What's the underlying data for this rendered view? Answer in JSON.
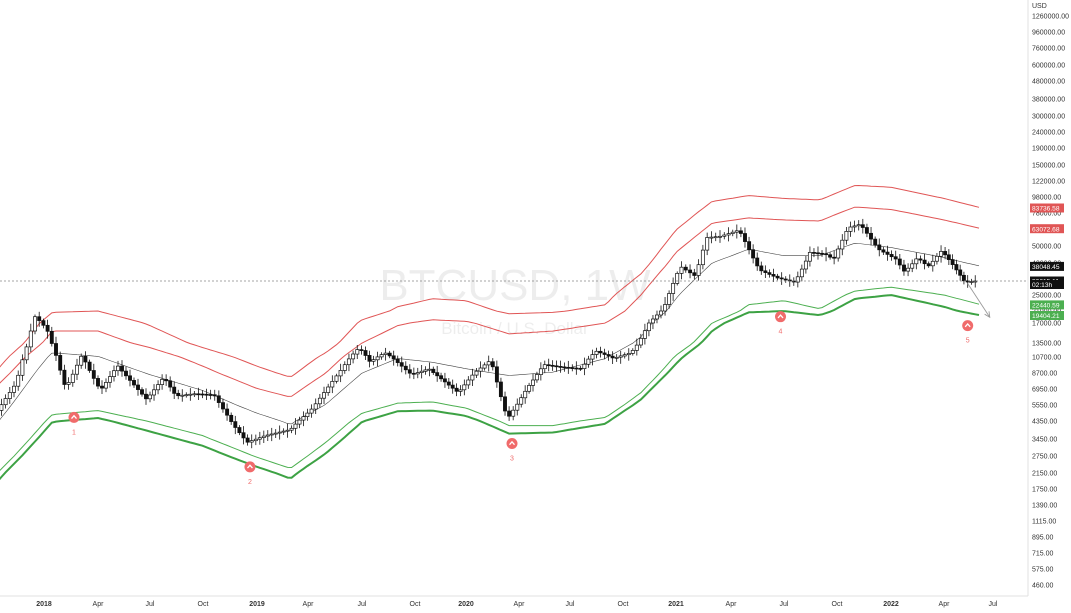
{
  "chart_data": {
    "type": "candlestick",
    "watermark": {
      "symbol": "BTCUSD, 1W",
      "description": "Bitcoin / U.S. Dollar"
    },
    "y_axis": {
      "unit_label": "USD",
      "scale": "log",
      "ticks": [
        {
          "label": "1260000.00",
          "value": 1260000
        },
        {
          "label": "960000.00",
          "value": 960000
        },
        {
          "label": "760000.00",
          "value": 760000
        },
        {
          "label": "600000.00",
          "value": 600000
        },
        {
          "label": "480000.00",
          "value": 480000
        },
        {
          "label": "380000.00",
          "value": 380000
        },
        {
          "label": "300000.00",
          "value": 300000
        },
        {
          "label": "240000.00",
          "value": 240000
        },
        {
          "label": "190000.00",
          "value": 190000
        },
        {
          "label": "150000.00",
          "value": 150000
        },
        {
          "label": "122000.00",
          "value": 122000
        },
        {
          "label": "98000.00",
          "value": 98000
        },
        {
          "label": "78000.00",
          "value": 78000
        },
        {
          "label": "62000.00",
          "value": 62000
        },
        {
          "label": "50000.00",
          "value": 50000
        },
        {
          "label": "40000.00",
          "value": 40000
        },
        {
          "label": "31500.00",
          "value": 31500
        },
        {
          "label": "25000.00",
          "value": 25000
        },
        {
          "label": "21000.00",
          "value": 21000
        },
        {
          "label": "17000.00",
          "value": 17000
        },
        {
          "label": "13500.00",
          "value": 13500
        },
        {
          "label": "10700.00",
          "value": 10700
        },
        {
          "label": "8700.00",
          "value": 8700
        },
        {
          "label": "6950.00",
          "value": 6950
        },
        {
          "label": "5550.00",
          "value": 5550
        },
        {
          "label": "4350.00",
          "value": 4350
        },
        {
          "label": "3450.00",
          "value": 3450
        },
        {
          "label": "2750.00",
          "value": 2750
        },
        {
          "label": "2150.00",
          "value": 2150
        },
        {
          "label": "1750.00",
          "value": 1750
        },
        {
          "label": "1390.00",
          "value": 1390
        },
        {
          "label": "1115.00",
          "value": 1115
        },
        {
          "label": "895.00",
          "value": 895
        },
        {
          "label": "715.00",
          "value": 715
        },
        {
          "label": "575.00",
          "value": 575
        },
        {
          "label": "460.00",
          "value": 460
        }
      ]
    },
    "x_axis": {
      "ticks": [
        {
          "label": "2018",
          "date": "2018-01-01",
          "bold": true
        },
        {
          "label": "Apr",
          "date": "2018-04-01",
          "bold": false
        },
        {
          "label": "Jul",
          "date": "2018-07-01",
          "bold": false
        },
        {
          "label": "Oct",
          "date": "2018-10-01",
          "bold": false
        },
        {
          "label": "2019",
          "date": "2019-01-01",
          "bold": true
        },
        {
          "label": "Apr",
          "date": "2019-04-01",
          "bold": false
        },
        {
          "label": "Jul",
          "date": "2019-07-01",
          "bold": false
        },
        {
          "label": "Oct",
          "date": "2019-10-01",
          "bold": false
        },
        {
          "label": "2020",
          "date": "2020-01-01",
          "bold": true
        },
        {
          "label": "Apr",
          "date": "2020-04-01",
          "bold": false
        },
        {
          "label": "Jul",
          "date": "2020-07-01",
          "bold": false
        },
        {
          "label": "Oct",
          "date": "2020-10-01",
          "bold": false
        },
        {
          "label": "2021",
          "date": "2021-01-01",
          "bold": true
        },
        {
          "label": "Apr",
          "date": "2021-04-01",
          "bold": false
        },
        {
          "label": "Jul",
          "date": "2021-07-01",
          "bold": false
        },
        {
          "label": "Oct",
          "date": "2021-10-01",
          "bold": false
        },
        {
          "label": "2022",
          "date": "2022-01-01",
          "bold": true
        },
        {
          "label": "Apr",
          "date": "2022-04-01",
          "bold": false
        },
        {
          "label": "Jul",
          "date": "2022-07-01",
          "bold": false
        }
      ]
    },
    "price_labels": [
      {
        "text": "83736.58",
        "value": 83736.58,
        "color": "#e05555",
        "text_color": "#ffffff"
      },
      {
        "text": "63072.68",
        "value": 63072.68,
        "color": "#e05555",
        "text_color": "#ffffff"
      },
      {
        "text": "38048.45",
        "value": 38048.45,
        "color": "#111111",
        "text_color": "#ffffff"
      },
      {
        "text": "30615.11",
        "value": 30615.11,
        "color": "#111111",
        "text_color": "#ffffff"
      },
      {
        "text": "02:13h",
        "value": 29100,
        "color": "#111111",
        "text_color": "#ffffff"
      },
      {
        "text": "22440.59",
        "value": 22440.59,
        "color": "#4caf50",
        "text_color": "#ffffff"
      },
      {
        "text": "19404.21",
        "value": 19404.21,
        "color": "#4caf50",
        "text_color": "#ffffff"
      }
    ],
    "current_price": 30615.11,
    "markers": [
      {
        "label": "1",
        "date": "2018-02-20",
        "value": 4600
      },
      {
        "label": "2",
        "date": "2018-12-20",
        "value": 2350
      },
      {
        "label": "3",
        "date": "2020-03-20",
        "value": 3250
      },
      {
        "label": "4",
        "date": "2021-06-25",
        "value": 19000
      },
      {
        "label": "5",
        "date": "2022-05-15",
        "value": 16500
      }
    ],
    "projection": {
      "from": {
        "date": "2022-05-15",
        "value": 29500
      },
      "to": {
        "date": "2022-06-25",
        "value": 18800
      }
    },
    "bands": [
      {
        "name": "",
        "role": "upper_outer",
        "color": "#e05555",
        "width": 1,
        "points": [
          [
            "2017-10-01",
            8000
          ],
          [
            "2018-01-15",
            20500
          ],
          [
            "2018-04-01",
            21000
          ],
          [
            "2018-07-01",
            16500
          ],
          [
            "2018-10-01",
            12500
          ],
          [
            "2019-01-01",
            9500
          ],
          [
            "2019-03-01",
            8200
          ],
          [
            "2019-05-01",
            11500
          ],
          [
            "2019-07-01",
            18000
          ],
          [
            "2019-09-01",
            22000
          ],
          [
            "2019-11-01",
            24000
          ],
          [
            "2020-01-01",
            23500
          ],
          [
            "2020-03-15",
            20000
          ],
          [
            "2020-06-01",
            20500
          ],
          [
            "2020-09-01",
            22500
          ],
          [
            "2020-11-01",
            34000
          ],
          [
            "2021-01-01",
            62000
          ],
          [
            "2021-03-01",
            92000
          ],
          [
            "2021-05-01",
            100000
          ],
          [
            "2021-07-01",
            96000
          ],
          [
            "2021-09-01",
            94000
          ],
          [
            "2021-11-01",
            115000
          ],
          [
            "2022-01-01",
            112000
          ],
          [
            "2022-04-01",
            96000
          ],
          [
            "2022-06-10",
            83736.58
          ]
        ]
      },
      {
        "name": "",
        "role": "upper_inner",
        "color": "#e05555",
        "width": 1,
        "points": [
          [
            "2017-10-01",
            6500
          ],
          [
            "2018-01-15",
            15500
          ],
          [
            "2018-04-01",
            15500
          ],
          [
            "2018-07-01",
            12500
          ],
          [
            "2018-10-01",
            9500
          ],
          [
            "2019-01-01",
            7000
          ],
          [
            "2019-03-01",
            6200
          ],
          [
            "2019-05-01",
            8700
          ],
          [
            "2019-07-01",
            13500
          ],
          [
            "2019-09-01",
            16500
          ],
          [
            "2019-11-01",
            18000
          ],
          [
            "2020-01-01",
            17500
          ],
          [
            "2020-03-15",
            15000
          ],
          [
            "2020-06-01",
            15500
          ],
          [
            "2020-09-01",
            17000
          ],
          [
            "2020-11-01",
            25000
          ],
          [
            "2021-01-01",
            46000
          ],
          [
            "2021-03-01",
            68000
          ],
          [
            "2021-05-01",
            73000
          ],
          [
            "2021-07-01",
            71000
          ],
          [
            "2021-09-01",
            70000
          ],
          [
            "2021-11-01",
            85000
          ],
          [
            "2022-01-01",
            82000
          ],
          [
            "2022-04-01",
            71000
          ],
          [
            "2022-06-10",
            63072.68
          ]
        ]
      },
      {
        "name": "",
        "role": "middle",
        "color": "#444444",
        "width": 0.6,
        "points": [
          [
            "2017-10-01",
            3600
          ],
          [
            "2017-12-20",
            9000
          ],
          [
            "2018-01-15",
            11500
          ],
          [
            "2018-04-01",
            10800
          ],
          [
            "2018-07-01",
            8500
          ],
          [
            "2018-10-01",
            6800
          ],
          [
            "2019-01-01",
            4900
          ],
          [
            "2019-03-01",
            4150
          ],
          [
            "2019-05-01",
            5600
          ],
          [
            "2019-07-01",
            8700
          ],
          [
            "2019-09-01",
            10500
          ],
          [
            "2019-11-01",
            10000
          ],
          [
            "2020-01-01",
            9200
          ],
          [
            "2020-03-15",
            8400
          ],
          [
            "2020-06-01",
            8800
          ],
          [
            "2020-09-01",
            10500
          ],
          [
            "2020-11-01",
            14500
          ],
          [
            "2021-01-01",
            24000
          ],
          [
            "2021-03-01",
            40000
          ],
          [
            "2021-05-01",
            48000
          ],
          [
            "2021-07-01",
            44000
          ],
          [
            "2021-09-01",
            44000
          ],
          [
            "2021-11-01",
            52000
          ],
          [
            "2022-01-01",
            49000
          ],
          [
            "2022-04-01",
            43000
          ],
          [
            "2022-06-10",
            38048.45
          ]
        ]
      },
      {
        "name": "",
        "role": "lower_inner",
        "color": "#4caf50",
        "width": 1,
        "points": [
          [
            "2017-10-01",
            1900
          ],
          [
            "2018-01-15",
            4800
          ],
          [
            "2018-04-01",
            5100
          ],
          [
            "2018-07-01",
            4300
          ],
          [
            "2018-10-01",
            3600
          ],
          [
            "2019-01-01",
            2700
          ],
          [
            "2019-03-01",
            2300
          ],
          [
            "2019-05-01",
            3300
          ],
          [
            "2019-07-01",
            4900
          ],
          [
            "2019-09-01",
            5700
          ],
          [
            "2019-11-01",
            5800
          ],
          [
            "2020-01-01",
            5300
          ],
          [
            "2020-03-15",
            4100
          ],
          [
            "2020-06-01",
            4100
          ],
          [
            "2020-09-01",
            4600
          ],
          [
            "2020-11-01",
            6600
          ],
          [
            "2021-01-01",
            11000
          ],
          [
            "2021-03-01",
            17000
          ],
          [
            "2021-05-01",
            22500
          ],
          [
            "2021-07-01",
            23500
          ],
          [
            "2021-09-01",
            21500
          ],
          [
            "2021-11-01",
            26500
          ],
          [
            "2022-01-01",
            28000
          ],
          [
            "2022-04-01",
            25000
          ],
          [
            "2022-06-10",
            22440.59
          ]
        ]
      },
      {
        "name": "",
        "role": "lower_outer",
        "color": "#3da244",
        "width": 2,
        "points": [
          [
            "2017-10-01",
            1700
          ],
          [
            "2018-01-15",
            4300
          ],
          [
            "2018-04-01",
            4550
          ],
          [
            "2018-07-01",
            3800
          ],
          [
            "2018-10-01",
            3150
          ],
          [
            "2019-01-01",
            2350
          ],
          [
            "2019-03-01",
            2000
          ],
          [
            "2019-05-01",
            2850
          ],
          [
            "2019-07-01",
            4300
          ],
          [
            "2019-09-01",
            5050
          ],
          [
            "2019-11-01",
            5100
          ],
          [
            "2020-01-01",
            4700
          ],
          [
            "2020-03-15",
            3700
          ],
          [
            "2020-06-01",
            3750
          ],
          [
            "2020-09-01",
            4200
          ],
          [
            "2020-11-01",
            6000
          ],
          [
            "2021-01-01",
            9800
          ],
          [
            "2021-03-01",
            15500
          ],
          [
            "2021-05-01",
            20500
          ],
          [
            "2021-07-01",
            21000
          ],
          [
            "2021-09-01",
            19500
          ],
          [
            "2021-11-01",
            24000
          ],
          [
            "2022-01-01",
            25000
          ],
          [
            "2022-04-01",
            22000
          ],
          [
            "2022-06-10",
            19404.21
          ]
        ]
      }
    ],
    "price_path": [
      [
        "2017-10-01",
        4300
      ],
      [
        "2017-11-15",
        7500
      ],
      [
        "2017-12-17",
        19000
      ],
      [
        "2018-01-10",
        15000
      ],
      [
        "2018-02-06",
        7000
      ],
      [
        "2018-03-05",
        11000
      ],
      [
        "2018-04-05",
        6800
      ],
      [
        "2018-05-05",
        9600
      ],
      [
        "2018-06-25",
        6000
      ],
      [
        "2018-07-25",
        8200
      ],
      [
        "2018-08-15",
        6300
      ],
      [
        "2018-09-15",
        6500
      ],
      [
        "2018-10-20",
        6400
      ],
      [
        "2018-11-20",
        4200
      ],
      [
        "2018-12-15",
        3300
      ],
      [
        "2019-01-15",
        3600
      ],
      [
        "2019-03-01",
        3900
      ],
      [
        "2019-04-05",
        5100
      ],
      [
        "2019-05-15",
        8000
      ],
      [
        "2019-06-26",
        12500
      ],
      [
        "2019-07-15",
        10000
      ],
      [
        "2019-08-10",
        11500
      ],
      [
        "2019-09-25",
        8500
      ],
      [
        "2019-10-26",
        9200
      ],
      [
        "2019-12-18",
        6600
      ],
      [
        "2020-01-15",
        8700
      ],
      [
        "2020-02-13",
        10300
      ],
      [
        "2020-03-12",
        4500
      ],
      [
        "2020-04-15",
        7000
      ],
      [
        "2020-05-15",
        9700
      ],
      [
        "2020-06-15",
        9400
      ],
      [
        "2020-07-20",
        9200
      ],
      [
        "2020-08-15",
        11800
      ],
      [
        "2020-09-15",
        10500
      ],
      [
        "2020-10-15",
        11500
      ],
      [
        "2020-11-15",
        17000
      ],
      [
        "2020-12-15",
        23000
      ],
      [
        "2021-01-08",
        38000
      ],
      [
        "2021-02-01",
        33000
      ],
      [
        "2021-02-20",
        56000
      ],
      [
        "2021-03-15",
        57000
      ],
      [
        "2021-04-15",
        62000
      ],
      [
        "2021-05-20",
        36000
      ],
      [
        "2021-06-20",
        32000
      ],
      [
        "2021-07-20",
        30000
      ],
      [
        "2021-08-15",
        46000
      ],
      [
        "2021-09-10",
        45000
      ],
      [
        "2021-09-25",
        42000
      ],
      [
        "2021-10-20",
        64000
      ],
      [
        "2021-11-10",
        67000
      ],
      [
        "2021-12-10",
        48000
      ],
      [
        "2022-01-10",
        42000
      ],
      [
        "2022-01-24",
        35000
      ],
      [
        "2022-02-15",
        43000
      ],
      [
        "2022-03-05",
        38000
      ],
      [
        "2022-03-28",
        47000
      ],
      [
        "2022-04-15",
        40000
      ],
      [
        "2022-05-10",
        30000
      ],
      [
        "2022-05-30",
        30615.11
      ]
    ]
  }
}
